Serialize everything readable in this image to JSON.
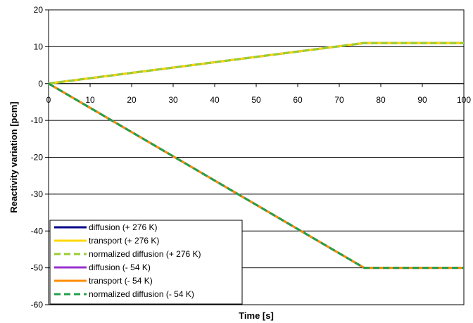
{
  "chart_data": {
    "type": "line",
    "xlabel": "Time [s]",
    "ylabel": "Reactivity variation  [pcm]",
    "xlim": [
      0,
      100
    ],
    "ylim": [
      -60,
      20
    ],
    "x_ticks": [
      0,
      10,
      20,
      30,
      40,
      50,
      60,
      70,
      80,
      90,
      100
    ],
    "y_ticks": [
      20,
      10,
      0,
      -10,
      -20,
      -30,
      -40,
      -50,
      -60
    ],
    "grid": "horizontal",
    "legend_position": "bottom-left",
    "series": [
      {
        "name": "diffusion (+ 276 K)",
        "color": "#00008b",
        "dash": "solid",
        "x": [
          0,
          76,
          100
        ],
        "y": [
          0,
          11,
          11
        ]
      },
      {
        "name": "transport (+ 276 K)",
        "color": "#ffd700",
        "dash": "solid",
        "x": [
          0,
          76,
          100
        ],
        "y": [
          0,
          11,
          11
        ]
      },
      {
        "name": "normalized diffusion (+ 276 K)",
        "color": "#9acd32",
        "dash": "dashed",
        "x": [
          0,
          76,
          100
        ],
        "y": [
          0,
          11,
          11
        ]
      },
      {
        "name": "diffusion (- 54 K)",
        "color": "#9932cc",
        "dash": "solid",
        "x": [
          0,
          76,
          100
        ],
        "y": [
          0,
          -50,
          -50
        ]
      },
      {
        "name": "transport (- 54 K)",
        "color": "#ff8c00",
        "dash": "solid",
        "x": [
          0,
          76,
          100
        ],
        "y": [
          0,
          -50,
          -50
        ]
      },
      {
        "name": "normalized diffusion (- 54 K)",
        "color": "#22a04b",
        "dash": "dashed",
        "x": [
          0,
          76,
          100
        ],
        "y": [
          0,
          -50,
          -50
        ]
      }
    ]
  }
}
